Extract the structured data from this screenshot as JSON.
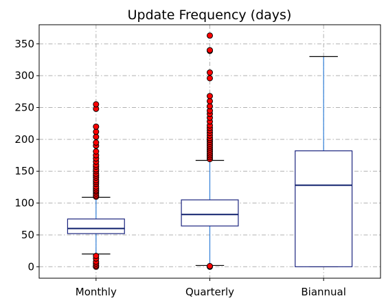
{
  "chart_data": {
    "type": "box",
    "title": "Update Frequency (days)",
    "xlabel": "",
    "ylabel": "",
    "ylim": [
      -18,
      380
    ],
    "yticks": [
      0,
      50,
      100,
      150,
      200,
      250,
      300,
      350
    ],
    "grid": true,
    "categories": [
      "Monthly",
      "Quarterly",
      "Biannual"
    ],
    "boxes": [
      {
        "category": "Monthly",
        "whisker_low": 20,
        "q1": 52,
        "median": 60,
        "q3": 75,
        "whisker_high": 109,
        "outliers": [
          0,
          2,
          5,
          8,
          13,
          17,
          110,
          112,
          115,
          118,
          120,
          123,
          126,
          130,
          133,
          136,
          140,
          143,
          146,
          150,
          153,
          157,
          160,
          165,
          170,
          175,
          181,
          190,
          195,
          204,
          212,
          220,
          248,
          255
        ]
      },
      {
        "category": "Quarterly",
        "whisker_low": 2,
        "q1": 64,
        "median": 82,
        "q3": 105,
        "whisker_high": 167,
        "outliers": [
          0,
          1,
          169,
          172,
          175,
          178,
          181,
          184,
          187,
          190,
          193,
          196,
          199,
          202,
          206,
          210,
          214,
          218,
          222,
          228,
          234,
          240,
          245,
          252,
          260,
          268,
          296,
          305,
          339,
          340,
          363
        ]
      },
      {
        "category": "Biannual",
        "whisker_low": 0,
        "q1": 0,
        "median": 128,
        "q3": 182,
        "whisker_high": 330,
        "outliers": []
      }
    ],
    "colors": {
      "box": "#1a237e",
      "median": "#0d1f6b",
      "whisker": "#2f7ed8",
      "cap": "#000000",
      "outlier_fill": "#ff0000",
      "outlier_edge": "#000000",
      "grid": "#b0b0b0"
    }
  }
}
